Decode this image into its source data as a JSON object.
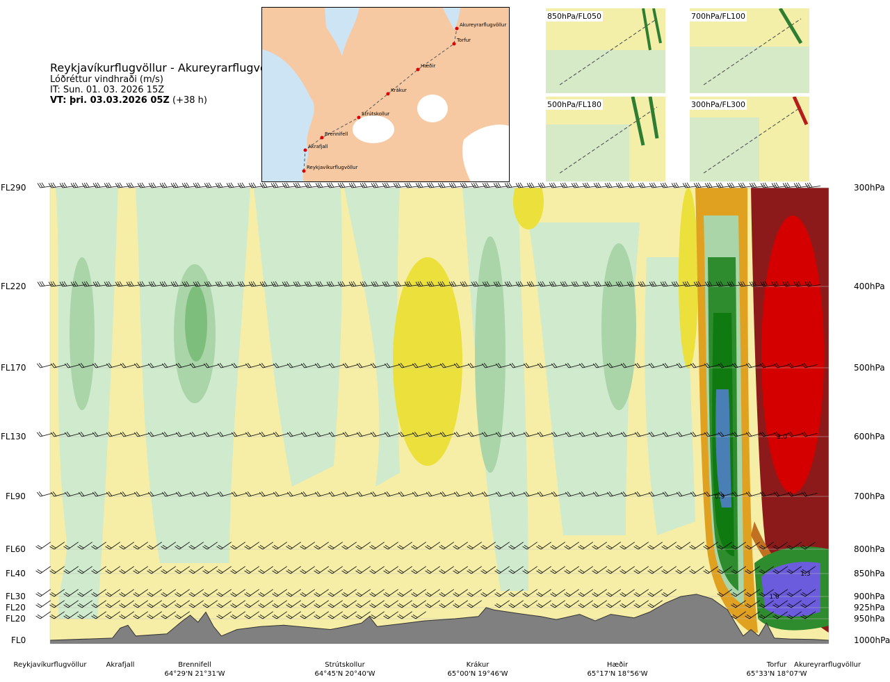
{
  "header": {
    "title": "Reykjavíkurflugvöllur - Akureyrarflugvöllur",
    "subtitle": "Lóðréttur vindhraði (m/s)",
    "issue_time": "IT: Sun. 01. 03. 2026 15Z",
    "valid_time": "VT: þri. 03.03.2026 05Z",
    "valid_offset": "(+38 h)"
  },
  "route_map": {
    "waypoints": [
      "Akureyrarflugvöllur",
      "Torfur",
      "Hæðir",
      "Krákur",
      "Strútskollur",
      "Brennifell",
      "Akrafjall",
      "Reykjavíkurflugvöllur"
    ],
    "colors": {
      "land": "#f6c9a3",
      "water": "#cde4f5",
      "ice": "#ffffff",
      "route": "#e00000"
    }
  },
  "thumbnails": [
    {
      "label": "850hPa/FL050"
    },
    {
      "label": "700hPa/FL100"
    },
    {
      "label": "500hPa/FL180"
    },
    {
      "label": "300hPa/FL300"
    }
  ],
  "chart_data": {
    "type": "heatmap",
    "title": "Lóðréttur vindhraði (m/s)",
    "xlabel": "",
    "ylabel": "",
    "flight_levels": [
      "FL290",
      "FL220",
      "FL170",
      "FL130",
      "FL90",
      "FL60",
      "FL40",
      "FL30",
      "FL20",
      "FL20",
      "FL0"
    ],
    "pressure_levels": [
      "300hPa",
      "400hPa",
      "500hPa",
      "600hPa",
      "700hPa",
      "800hPa",
      "850hPa",
      "900hPa",
      "925hPa",
      "950hPa",
      "1000hPa"
    ],
    "pressure_values_hpa": [
      300,
      400,
      500,
      600,
      700,
      800,
      850,
      900,
      925,
      950,
      1000
    ],
    "locations": [
      {
        "name": "Reykjavíkurflugvöllur",
        "coord": ""
      },
      {
        "name": "Akrafjall",
        "coord": ""
      },
      {
        "name": "Brennifell",
        "coord": "64°29'N 21°31'W"
      },
      {
        "name": "Strútskollur",
        "coord": "64°45'N 20°40'W"
      },
      {
        "name": "Krákur",
        "coord": "65°00'N 19°46'W"
      },
      {
        "name": "Hæðir",
        "coord": "65°17'N 18°56'W"
      },
      {
        "name": "Torfur",
        "coord": "65°33'N 18°07'W"
      },
      {
        "name": "Akureyrarflugvöllur",
        "coord": ""
      }
    ],
    "location_fractions": [
      0.0,
      0.09,
      0.19,
      0.38,
      0.57,
      0.76,
      0.93,
      1.0
    ],
    "value_annotations": [
      {
        "text": "2.0",
        "x_frac": 0.94,
        "p_hpa": 600
      },
      {
        "text": "0.9",
        "x_frac": 0.86,
        "p_hpa": 700
      },
      {
        "text": "1.3",
        "x_frac": 0.97,
        "p_hpa": 850
      },
      {
        "text": "1.0",
        "x_frac": 0.93,
        "p_hpa": 900
      }
    ],
    "terrain_hpa_along_route": [
      [
        0.0,
        1000
      ],
      [
        0.08,
        995
      ],
      [
        0.09,
        972
      ],
      [
        0.1,
        965
      ],
      [
        0.11,
        990
      ],
      [
        0.15,
        985
      ],
      [
        0.17,
        955
      ],
      [
        0.18,
        942
      ],
      [
        0.19,
        958
      ],
      [
        0.2,
        935
      ],
      [
        0.21,
        968
      ],
      [
        0.22,
        990
      ],
      [
        0.24,
        975
      ],
      [
        0.27,
        968
      ],
      [
        0.3,
        965
      ],
      [
        0.33,
        970
      ],
      [
        0.36,
        975
      ],
      [
        0.38,
        968
      ],
      [
        0.4,
        960
      ],
      [
        0.41,
        945
      ],
      [
        0.42,
        968
      ],
      [
        0.45,
        962
      ],
      [
        0.48,
        955
      ],
      [
        0.52,
        950
      ],
      [
        0.55,
        945
      ],
      [
        0.56,
        925
      ],
      [
        0.57,
        930
      ],
      [
        0.6,
        938
      ],
      [
        0.63,
        945
      ],
      [
        0.65,
        952
      ],
      [
        0.68,
        940
      ],
      [
        0.7,
        955
      ],
      [
        0.72,
        940
      ],
      [
        0.75,
        948
      ],
      [
        0.77,
        935
      ],
      [
        0.79,
        915
      ],
      [
        0.81,
        900
      ],
      [
        0.83,
        895
      ],
      [
        0.85,
        905
      ],
      [
        0.87,
        930
      ],
      [
        0.88,
        960
      ],
      [
        0.89,
        990
      ],
      [
        0.9,
        975
      ],
      [
        0.91,
        990
      ],
      [
        0.92,
        960
      ],
      [
        0.93,
        995
      ],
      [
        0.95,
        997
      ],
      [
        0.98,
        998
      ],
      [
        1.0,
        1000
      ]
    ],
    "legend": "none",
    "grid": true
  }
}
